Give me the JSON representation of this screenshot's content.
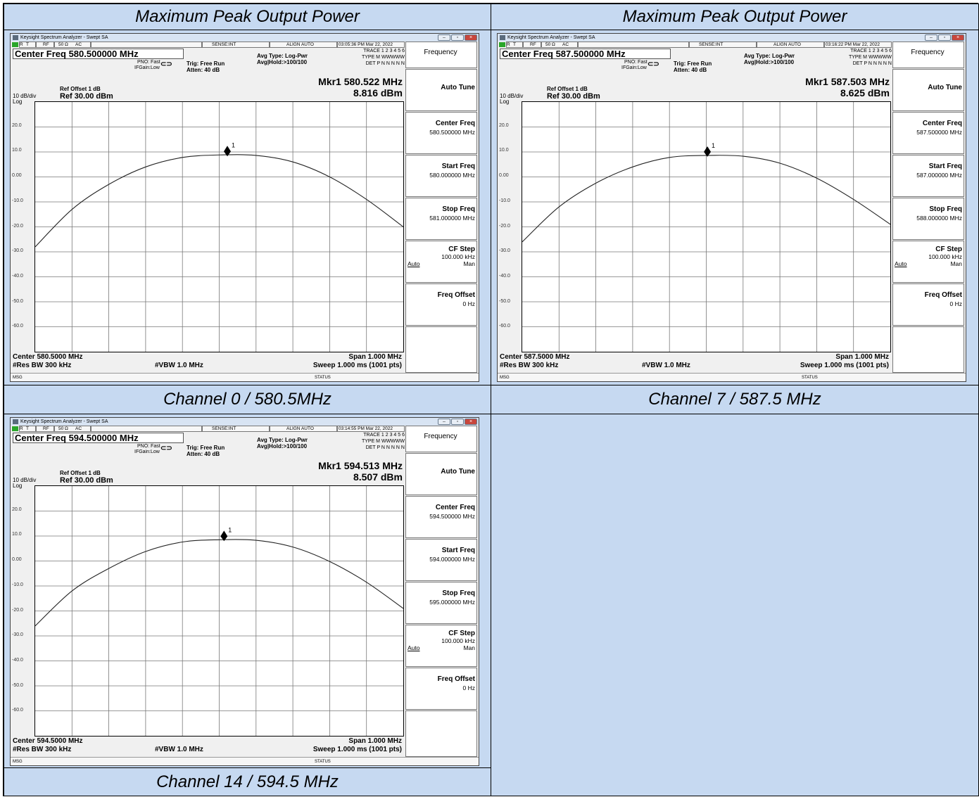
{
  "table": {
    "header_left": "Maximum Peak Output Power",
    "header_right": "Maximum Peak Output Power",
    "caption_ch0": "Channel 0 / 580.5MHz",
    "caption_ch7": "Channel 7 / 587.5 MHz",
    "caption_ch14": "Channel 14 / 594.5 MHz"
  },
  "common": {
    "app_title": "Keysight Spectrum Analyzer - Swept SA",
    "status_labels": [
      "R",
      "T",
      "RF",
      "50 Ω",
      "AC",
      "SENSE:INT",
      "ALIGN AUTO"
    ],
    "pno": "PNO: Fast",
    "ifgain": "IFGain:Low",
    "trig": "Trig: Free Run",
    "atten": "Atten: 40 dB",
    "avg_type": "Avg Type: Log-Pwr",
    "avg_hold": "Avg|Hold:>100/100",
    "trace_row": "TRACE 1 2 3 4 5 6",
    "type_row": "TYPE M WWWWW",
    "det_row": "DET P N N N N N",
    "ref_offset": "Ref Offset 1 dB",
    "div": "10 dB/div",
    "log": "Log",
    "ref": "Ref 30.00 dBm",
    "y_ticks": [
      "20.0",
      "10.0",
      "0.00",
      "-10.0",
      "-20.0",
      "-30.0",
      "-40.0",
      "-50.0",
      "-60.0"
    ],
    "res_bw": "#Res BW 300 kHz",
    "vbw": "#VBW 1.0 MHz",
    "span": "Span 1.000 MHz",
    "sweep": "Sweep 1.000 ms (1001 pts)",
    "msg": "MSG",
    "status": "STATUS",
    "marker_label": "1",
    "softkey_title": "Frequency",
    "softkeys": {
      "auto_tune": "Auto Tune",
      "center_freq": "Center Freq",
      "start_freq": "Start Freq",
      "stop_freq": "Stop Freq",
      "cf_step": "CF Step",
      "cf_step_value": "100.000 kHz",
      "cf_auto": "Auto",
      "cf_man": "Man",
      "freq_offset": "Freq Offset",
      "freq_offset_value": "0 Hz"
    }
  },
  "screens": [
    {
      "timestamp": "03:05:36 PM Mar 22, 2022",
      "center_freq_box": "Center Freq 580.500000 MHz",
      "mkr_freq": "Mkr1 580.522 MHz",
      "mkr_amp": "8.816 dBm",
      "center_label": "Center 580.5000 MHz",
      "center_value": "580.500000 MHz",
      "start_value": "580.000000 MHz",
      "stop_value": "581.000000 MHz",
      "chart_data": {
        "type": "line",
        "x_range_mhz": [
          580.0,
          581.0
        ],
        "ylim": [
          -70,
          30
        ],
        "marker": {
          "x": 580.522,
          "y": 8.816
        },
        "x": [
          580.0,
          580.1,
          580.2,
          580.3,
          580.4,
          580.5,
          580.6,
          580.7,
          580.8,
          580.9,
          581.0
        ],
        "values": [
          -28,
          -13,
          -3,
          4,
          7.8,
          8.8,
          8.6,
          6,
          0,
          -9,
          -20
        ]
      }
    },
    {
      "timestamp": "03:16:22 PM Mar 22, 2022",
      "center_freq_box": "Center Freq 587.500000 MHz",
      "mkr_freq": "Mkr1 587.503 MHz",
      "mkr_amp": "8.625 dBm",
      "center_label": "Center 587.5000 MHz",
      "center_value": "587.500000 MHz",
      "start_value": "587.000000 MHz",
      "stop_value": "588.000000 MHz",
      "chart_data": {
        "type": "line",
        "x_range_mhz": [
          587.0,
          588.0
        ],
        "ylim": [
          -70,
          30
        ],
        "marker": {
          "x": 587.503,
          "y": 8.625
        },
        "x": [
          587.0,
          587.1,
          587.2,
          587.3,
          587.4,
          587.5,
          587.6,
          587.7,
          587.8,
          587.9,
          588.0
        ],
        "values": [
          -26,
          -12,
          -2.5,
          4,
          7.8,
          8.6,
          8.3,
          5.5,
          -0.5,
          -9,
          -19
        ]
      }
    },
    {
      "timestamp": "03:14:55 PM Mar 22, 2022",
      "center_freq_box": "Center Freq 594.500000 MHz",
      "mkr_freq": "Mkr1 594.513 MHz",
      "mkr_amp": "8.507 dBm",
      "center_label": "Center 594.5000 MHz",
      "center_value": "594.500000 MHz",
      "start_value": "594.000000 MHz",
      "stop_value": "595.000000 MHz",
      "chart_data": {
        "type": "line",
        "x_range_mhz": [
          594.0,
          595.0
        ],
        "ylim": [
          -70,
          30
        ],
        "marker": {
          "x": 594.513,
          "y": 8.507
        },
        "x": [
          594.0,
          594.1,
          594.2,
          594.3,
          594.4,
          594.5,
          594.6,
          594.7,
          594.8,
          594.9,
          595.0
        ],
        "values": [
          -26,
          -12,
          -3,
          3.8,
          7.6,
          8.5,
          8.3,
          5.6,
          -0.2,
          -8.5,
          -19
        ]
      }
    }
  ]
}
